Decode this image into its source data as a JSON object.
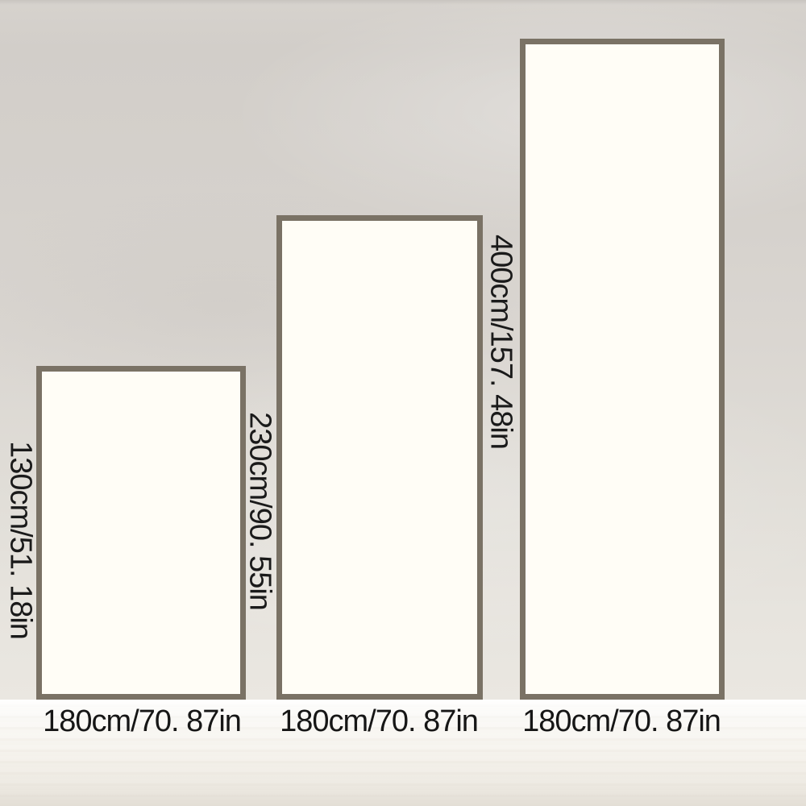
{
  "diagram": {
    "description": "size comparison diagram of three panels",
    "colors": {
      "panel_border": "#7a7265",
      "panel_fill": "#fffdf6",
      "label_text": "#1a1a1a",
      "background_top": "#d2cec9",
      "background_bottom": "#eae7e1",
      "floor": "#f3f1eb"
    },
    "panels": [
      {
        "name": "panel-130cm",
        "height_label": "130cm/51. 18in",
        "width_label": "180cm/70. 87in"
      },
      {
        "name": "panel-230cm",
        "height_label": "230cm/90. 55in",
        "width_label": "180cm/70. 87in"
      },
      {
        "name": "panel-400cm",
        "height_label": "400cm/157. 48in",
        "width_label": "180cm/70. 87in"
      }
    ]
  }
}
